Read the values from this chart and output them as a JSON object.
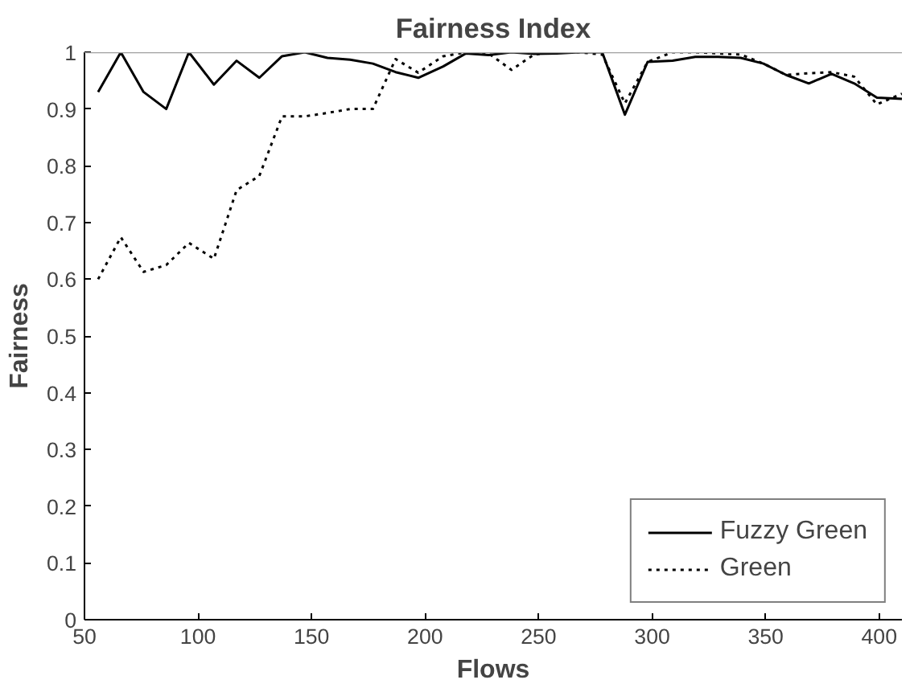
{
  "chart_data": {
    "type": "line",
    "title": "Fairness Index",
    "xlabel": "Flows",
    "ylabel": "Fairness",
    "x": [
      56,
      66,
      76,
      86,
      96,
      107,
      117,
      127,
      137,
      147,
      157,
      167,
      177,
      187,
      197,
      208,
      218,
      228,
      238,
      248,
      258,
      268,
      278,
      288,
      298,
      309,
      319,
      329,
      339,
      349,
      359,
      369,
      379,
      389,
      399,
      410
    ],
    "xlim": [
      50,
      410
    ],
    "ylim": [
      0,
      1
    ],
    "xticks": [
      50,
      100,
      150,
      200,
      250,
      300,
      350,
      400
    ],
    "yticks": [
      0,
      0.1,
      0.2,
      0.3,
      0.4,
      0.5,
      0.6,
      0.7,
      0.8,
      0.9,
      1
    ],
    "series": [
      {
        "name": "Fuzzy Green",
        "color": "#000000",
        "line_style": "solid",
        "values": [
          0.93,
          1.0,
          0.93,
          0.9,
          1.0,
          0.943,
          0.985,
          0.955,
          0.993,
          1.0,
          0.99,
          0.987,
          0.98,
          0.965,
          0.955,
          0.975,
          0.998,
          0.995,
          1.0,
          0.997,
          0.998,
          1.0,
          1.0,
          0.89,
          0.983,
          0.985,
          0.992,
          0.992,
          0.99,
          0.98,
          0.96,
          0.945,
          0.962,
          0.945,
          0.92,
          0.918
        ]
      },
      {
        "name": "Green",
        "color": "#000000",
        "line_style": "dotted",
        "values": [
          0.6,
          0.674,
          0.613,
          0.625,
          0.664,
          0.636,
          0.757,
          0.782,
          0.887,
          0.887,
          0.893,
          0.9,
          0.9,
          0.988,
          0.964,
          0.993,
          1.0,
          0.998,
          0.969,
          0.996,
          1.0,
          1.0,
          0.996,
          0.91,
          0.983,
          1.0,
          1.0,
          0.998,
          0.996,
          0.98,
          0.96,
          0.963,
          0.965,
          0.957,
          0.908,
          0.927
        ]
      }
    ],
    "ref_lines": [
      {
        "axis": "y",
        "value": 1,
        "color": "#a0a0a0"
      }
    ],
    "legend": "bottom right",
    "grid": false
  }
}
